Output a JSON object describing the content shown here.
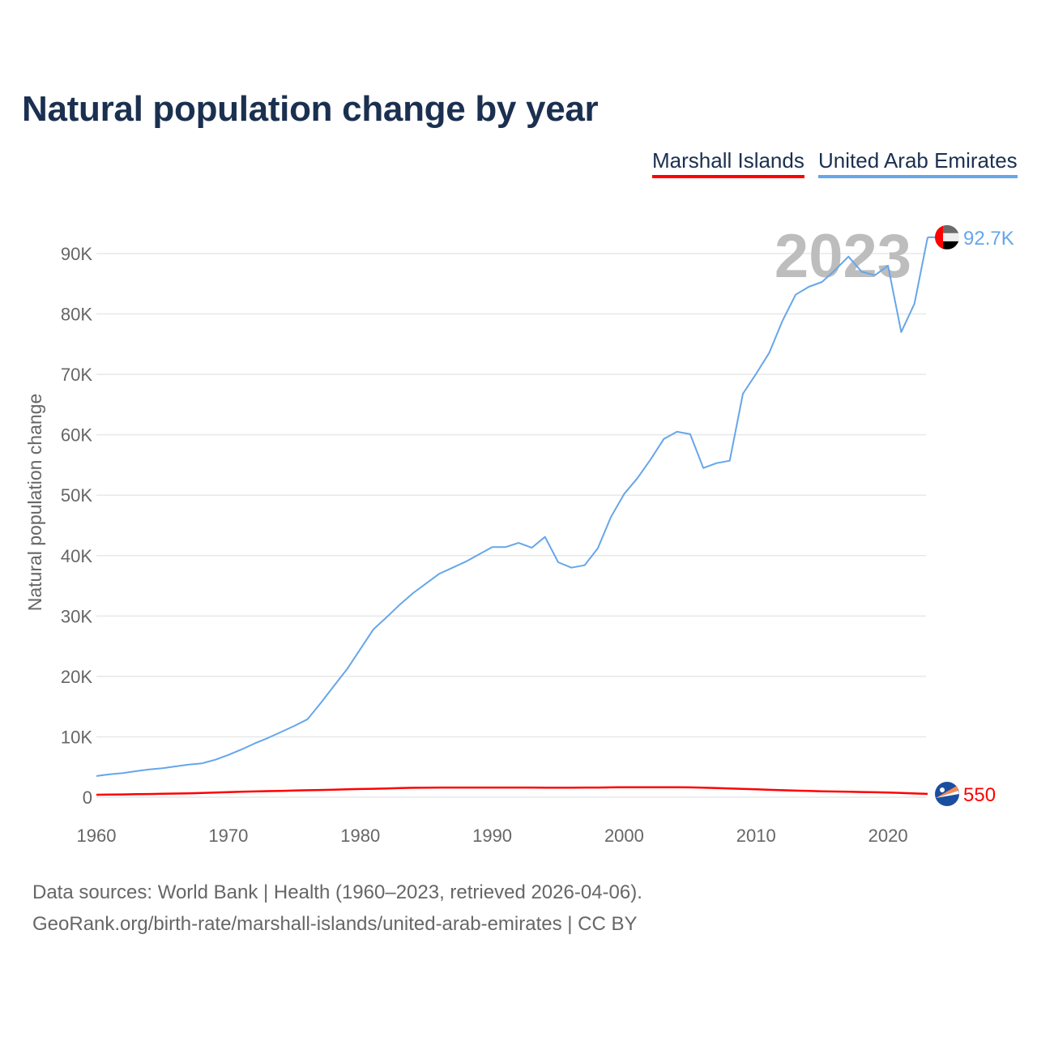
{
  "chart_data": {
    "type": "line",
    "title": "Natural population change by year",
    "xlabel": "",
    "ylabel": "Natural population change",
    "xlim": [
      1960,
      2023
    ],
    "ylim": [
      0,
      90000
    ],
    "grid": true,
    "legend_position": "top-right",
    "x_ticks": [
      "1960",
      "1970",
      "1980",
      "1990",
      "2000",
      "2010",
      "2020"
    ],
    "y_ticks": [
      {
        "value": 0,
        "label": "0"
      },
      {
        "value": 10000,
        "label": "10K"
      },
      {
        "value": 20000,
        "label": "20K"
      },
      {
        "value": 30000,
        "label": "30K"
      },
      {
        "value": 40000,
        "label": "40K"
      },
      {
        "value": 50000,
        "label": "50K"
      },
      {
        "value": 60000,
        "label": "60K"
      },
      {
        "value": 70000,
        "label": "70K"
      },
      {
        "value": 80000,
        "label": "80K"
      },
      {
        "value": 90000,
        "label": "90K"
      }
    ],
    "year_watermark": "2023",
    "x_start": 1960,
    "series": [
      {
        "name": "Marshall Islands",
        "color": "#ff0000",
        "end_label": "550",
        "values": [
          400,
          430,
          460,
          490,
          520,
          560,
          600,
          650,
          700,
          760,
          850,
          900,
          950,
          1000,
          1050,
          1100,
          1150,
          1200,
          1250,
          1300,
          1350,
          1400,
          1450,
          1500,
          1550,
          1580,
          1600,
          1600,
          1600,
          1600,
          1600,
          1600,
          1600,
          1600,
          1580,
          1580,
          1580,
          1600,
          1600,
          1620,
          1650,
          1650,
          1650,
          1650,
          1650,
          1620,
          1580,
          1520,
          1450,
          1380,
          1300,
          1220,
          1150,
          1080,
          1030,
          980,
          940,
          900,
          860,
          820,
          760,
          700,
          620,
          550
        ]
      },
      {
        "name": "United Arab Emirates",
        "color": "#66a6ea",
        "end_label": "92.7K",
        "values": [
          3500,
          3800,
          4000,
          4300,
          4600,
          4800,
          5100,
          5400,
          5600,
          6200,
          7000,
          7900,
          8900,
          9800,
          10800,
          11800,
          12900,
          15600,
          18400,
          21200,
          24500,
          27800,
          29800,
          31900,
          33800,
          35400,
          37000,
          38000,
          39000,
          40200,
          41400,
          41400,
          42100,
          41300,
          43100,
          38900,
          38000,
          38400,
          41200,
          46400,
          50200,
          52800,
          55900,
          59300,
          60500,
          60100,
          54500,
          55300,
          55700,
          66800,
          70100,
          73600,
          78900,
          83200,
          84500,
          85300,
          87300,
          89500,
          87000,
          86400,
          88000,
          77000,
          81700,
          92700
        ]
      }
    ]
  },
  "footer": {
    "line1": "Data sources: World Bank | Health (1960–2023, retrieved 2026-04-06).",
    "line2": "GeoRank.org/birth-rate/marshall-islands/united-arab-emirates | CC BY"
  }
}
